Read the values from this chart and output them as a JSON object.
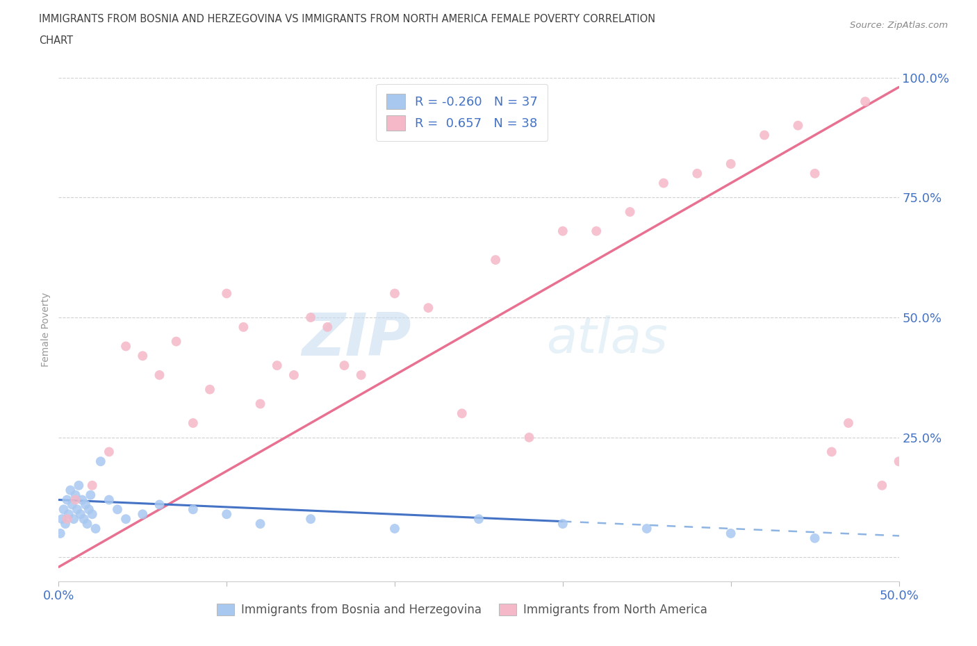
{
  "title_line1": "IMMIGRANTS FROM BOSNIA AND HERZEGOVINA VS IMMIGRANTS FROM NORTH AMERICA FEMALE POVERTY CORRELATION",
  "title_line2": "CHART",
  "source": "Source: ZipAtlas.com",
  "ylabel": "Female Poverty",
  "watermark_zip": "ZIP",
  "watermark_atlas": "atlas",
  "r_blue": -0.26,
  "n_blue": 37,
  "r_pink": 0.657,
  "n_pink": 38,
  "blue_color": "#A8C8F0",
  "pink_color": "#F5B8C8",
  "blue_line_solid_color": "#4472C4",
  "blue_line_dash_color": "#8EB4E3",
  "pink_line_color": "#E87090",
  "axis_label_color": "#4472C4",
  "title_color": "#404040",
  "background_color": "#ffffff",
  "grid_color": "#D0D0D0",
  "xlim_min": 0,
  "xlim_max": 50,
  "ylim_min": -5,
  "ylim_max": 100,
  "blue_scatter_x": [
    0.1,
    0.2,
    0.3,
    0.4,
    0.5,
    0.6,
    0.7,
    0.8,
    0.9,
    1.0,
    1.1,
    1.2,
    1.3,
    1.4,
    1.5,
    1.6,
    1.7,
    1.8,
    1.9,
    2.0,
    2.2,
    2.5,
    3.0,
    3.5,
    4.0,
    5.0,
    6.0,
    8.0,
    10.0,
    12.0,
    15.0,
    20.0,
    25.0,
    30.0,
    35.0,
    40.0,
    45.0
  ],
  "blue_scatter_y": [
    5,
    8,
    10,
    7,
    12,
    9,
    14,
    11,
    8,
    13,
    10,
    15,
    9,
    12,
    8,
    11,
    7,
    10,
    13,
    9,
    6,
    20,
    12,
    10,
    8,
    9,
    11,
    10,
    9,
    7,
    8,
    6,
    8,
    7,
    6,
    5,
    4
  ],
  "pink_scatter_x": [
    0.5,
    1.0,
    2.0,
    3.0,
    4.0,
    5.0,
    6.0,
    7.0,
    8.0,
    9.0,
    10.0,
    11.0,
    12.0,
    13.0,
    14.0,
    15.0,
    16.0,
    17.0,
    18.0,
    20.0,
    22.0,
    24.0,
    26.0,
    28.0,
    30.0,
    32.0,
    34.0,
    36.0,
    38.0,
    40.0,
    42.0,
    44.0,
    45.0,
    46.0,
    47.0,
    48.0,
    49.0,
    50.0
  ],
  "pink_scatter_y": [
    8,
    12,
    15,
    22,
    44,
    42,
    38,
    45,
    28,
    35,
    55,
    48,
    32,
    40,
    38,
    50,
    48,
    40,
    38,
    55,
    52,
    30,
    62,
    25,
    68,
    68,
    72,
    78,
    80,
    82,
    88,
    90,
    80,
    22,
    28,
    95,
    15,
    20
  ]
}
